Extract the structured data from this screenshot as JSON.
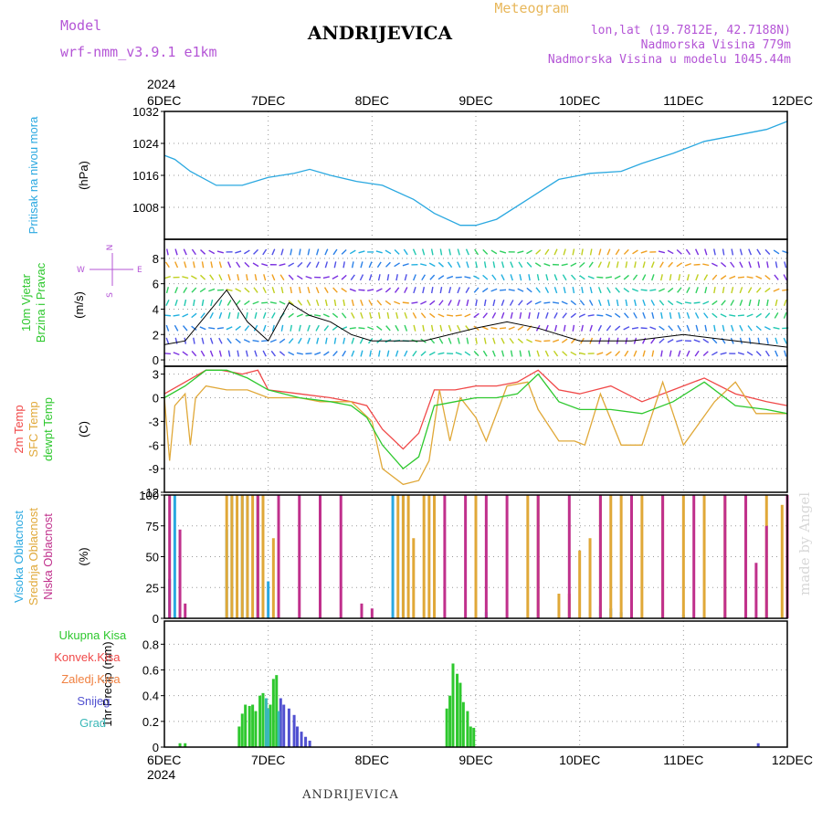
{
  "header": {
    "model_label": "Model",
    "model_name": "wrf-nmm_v3.9.1 e1km",
    "station": "ANDRIJEVICA",
    "meteogram_label": "Meteogram",
    "lonlat": "lon,lat (19.7812E, 42.7188N)",
    "altitude": "Nadmorska Visina 779m",
    "model_altitude": "Nadmorska Visina u modelu 1045.44m"
  },
  "footer": {
    "station": "ANDRIJEVICA",
    "watermark": "made by Angel"
  },
  "colors": {
    "pressure": "#2aa8e0",
    "temp2m": "#f04848",
    "sfc": "#e0a838",
    "dew": "#2ec82e",
    "cloud_high": "#2aa8e0",
    "cloud_mid": "#e0a838",
    "cloud_low": "#c0308c",
    "precip_total": "#2ec82e",
    "precip_conv": "#f04848",
    "precip_frz": "#f08040",
    "precip_snow": "#5050d0",
    "precip_grad": "#3ab8b8",
    "wind_label": "#2ec82e",
    "compass": "#b455d6"
  },
  "chart_data": {
    "type": "meteogram",
    "x": {
      "year": "2024",
      "ticks": [
        "6DEC",
        "7DEC",
        "8DEC",
        "9DEC",
        "10DEC",
        "11DEC",
        "12DEC"
      ],
      "range_days": [
        0,
        6
      ]
    },
    "panels": [
      {
        "id": "pressure",
        "type": "line",
        "ylabel_lines": [
          "Pritisak na nivou mora"
        ],
        "unit": "(hPa)",
        "ylim": [
          1000,
          1032
        ],
        "yticks": [
          1008,
          1016,
          1024,
          1032
        ],
        "series": [
          {
            "key": "pressure",
            "x": [
              0,
              0.1,
              0.25,
              0.5,
              0.75,
              1.0,
              1.25,
              1.4,
              1.6,
              1.85,
              2.1,
              2.4,
              2.6,
              2.85,
              3.0,
              3.2,
              3.5,
              3.8,
              4.1,
              4.4,
              4.6,
              4.9,
              5.2,
              5.5,
              5.8,
              6.0
            ],
            "y": [
              1021,
              1020,
              1017,
              1013.5,
              1013.5,
              1015.5,
              1016.5,
              1017.5,
              1016,
              1014.5,
              1013.5,
              1010,
              1006.5,
              1003.5,
              1003.5,
              1005,
              1010,
              1015,
              1016.5,
              1017,
              1019,
              1021.5,
              1024.5,
              1026,
              1027.5,
              1029.5
            ]
          }
        ]
      },
      {
        "id": "wind",
        "type": "wind",
        "ylabel_lines": [
          "10m Vjetar",
          "Brzina i Pravac"
        ],
        "unit": "(m/s)",
        "ylim": [
          -0.5,
          9.5
        ],
        "yticks": [
          0,
          2,
          4,
          6,
          8
        ],
        "compass": [
          "N",
          "W",
          "E",
          "S"
        ],
        "speed_series": {
          "x": [
            0,
            0.2,
            0.4,
            0.6,
            0.8,
            1.0,
            1.2,
            1.4,
            1.6,
            1.8,
            2.0,
            2.5,
            3.0,
            3.3,
            3.6,
            4.0,
            4.5,
            5.0,
            5.5,
            6.0
          ],
          "y": [
            1.2,
            1.5,
            3.5,
            5.5,
            3.0,
            1.5,
            4.5,
            3.5,
            3.0,
            2.0,
            1.5,
            1.5,
            2.5,
            3.0,
            2.5,
            1.5,
            1.5,
            2.0,
            1.5,
            1.0
          ]
        }
      },
      {
        "id": "temperature",
        "type": "line",
        "ylabel_lines": [
          "2m Temp",
          "SFC Temp",
          "dewpt Temp"
        ],
        "unit": "(C)",
        "ylim": [
          -12,
          4
        ],
        "yticks": [
          -12,
          -9,
          -6,
          -3,
          0,
          3
        ],
        "series": [
          {
            "key": "temp2m",
            "x": [
              0,
              0.2,
              0.4,
              0.55,
              0.75,
              0.9,
              1.0,
              1.3,
              1.6,
              1.8,
              1.95,
              2.1,
              2.3,
              2.45,
              2.6,
              2.8,
              3.0,
              3.2,
              3.4,
              3.6,
              3.8,
              4.0,
              4.3,
              4.6,
              4.9,
              5.2,
              5.5,
              5.8,
              6.0
            ],
            "y": [
              0.5,
              2.0,
              3.5,
              3.5,
              3.0,
              3.5,
              1.0,
              0.5,
              0.0,
              -0.5,
              -1.0,
              -4.0,
              -6.5,
              -4.5,
              1.0,
              1.0,
              1.5,
              1.5,
              2.0,
              3.5,
              1.0,
              0.5,
              1.5,
              -0.5,
              1.0,
              2.5,
              0.5,
              -0.5,
              -1.0
            ]
          },
          {
            "key": "sfc",
            "x": [
              0,
              0.05,
              0.1,
              0.2,
              0.25,
              0.3,
              0.4,
              0.6,
              0.8,
              1.0,
              1.3,
              1.5,
              1.8,
              2.0,
              2.1,
              2.3,
              2.45,
              2.55,
              2.65,
              2.75,
              2.85,
              3.0,
              3.1,
              3.3,
              3.5,
              3.6,
              3.8,
              3.95,
              4.05,
              4.2,
              4.4,
              4.6,
              4.8,
              5.0,
              5.3,
              5.5,
              5.7,
              6.0
            ],
            "y": [
              0.0,
              -8.0,
              -1.0,
              0.5,
              -6.0,
              0.0,
              1.5,
              1.0,
              1.0,
              0.0,
              0.0,
              -0.5,
              -0.5,
              -3.0,
              -9.0,
              -11.0,
              -10.5,
              -8.0,
              1.0,
              -5.5,
              0.0,
              -2.5,
              -5.5,
              1.5,
              2.0,
              -1.5,
              -5.5,
              -5.5,
              -6.0,
              0.5,
              -6.0,
              -6.0,
              2.0,
              -6.0,
              -0.5,
              2.0,
              -2.0,
              -2.0
            ]
          },
          {
            "key": "dew",
            "x": [
              0,
              0.2,
              0.4,
              0.6,
              0.8,
              1.0,
              1.3,
              1.6,
              1.8,
              1.95,
              2.1,
              2.3,
              2.45,
              2.6,
              2.8,
              3.0,
              3.2,
              3.4,
              3.6,
              3.8,
              4.0,
              4.3,
              4.6,
              4.9,
              5.2,
              5.5,
              5.8,
              6.0
            ],
            "y": [
              0.0,
              1.5,
              3.5,
              3.5,
              2.5,
              1.0,
              0.0,
              -0.5,
              -1.0,
              -2.5,
              -6.0,
              -9.0,
              -7.5,
              -1.0,
              -0.5,
              0.0,
              0.0,
              0.5,
              3.0,
              -0.5,
              -1.5,
              -1.5,
              -2.0,
              -0.5,
              2.0,
              -1.0,
              -1.5,
              -2.0
            ]
          }
        ]
      },
      {
        "id": "clouds",
        "type": "bar",
        "ylabel_lines": [
          "Visoka Oblacnost",
          "Srednja Oblacnost",
          "Niska Oblacnost"
        ],
        "unit": "(%)",
        "ylim": [
          0,
          100
        ],
        "yticks": [
          0,
          25,
          50,
          75,
          100
        ],
        "series": [
          {
            "key": "cloud_high",
            "name": "Visoka Oblacnost",
            "x": [
              0.05,
              0.1,
              0.6,
              0.65,
              0.75,
              0.8,
              0.9,
              1.0,
              2.2,
              2.3,
              3.0,
              3.1,
              4.2,
              4.3,
              4.4,
              5.0,
              5.2,
              5.4,
              5.6,
              6.0
            ],
            "values": [
              32,
              100,
              72,
              100,
              100,
              100,
              100,
              30,
              100,
              100,
              15,
              5,
              10,
              8,
              5,
              3,
              2,
              2,
              2,
              2
            ]
          },
          {
            "key": "cloud_mid",
            "name": "Srednja Oblacnost",
            "x": [
              0.6,
              0.65,
              0.7,
              0.75,
              0.8,
              0.85,
              0.9,
              0.95,
              1.05,
              2.25,
              2.3,
              2.35,
              2.4,
              2.5,
              2.55,
              2.6,
              3.0,
              3.5,
              3.6,
              3.8,
              3.9,
              4.0,
              4.1,
              4.2,
              4.3,
              4.4,
              4.6,
              4.8,
              5.0,
              5.2,
              5.4,
              5.6,
              5.8,
              5.95
            ],
            "values": [
              100,
              100,
              100,
              100,
              100,
              100,
              100,
              100,
              65,
              100,
              100,
              100,
              65,
              100,
              100,
              100,
              100,
              100,
              100,
              20,
              20,
              55,
              65,
              100,
              100,
              100,
              100,
              100,
              100,
              100,
              100,
              100,
              100,
              92
            ]
          },
          {
            "key": "cloud_low",
            "name": "Niska Oblacnost",
            "x": [
              0.05,
              0.15,
              0.2,
              0.9,
              1.1,
              1.3,
              1.5,
              1.7,
              1.9,
              2.0,
              2.7,
              2.9,
              3.1,
              3.3,
              3.6,
              3.9,
              4.2,
              4.5,
              4.8,
              5.1,
              5.4,
              5.6,
              5.7,
              5.8,
              6.0
            ],
            "values": [
              100,
              72,
              12,
              100,
              100,
              100,
              100,
              100,
              12,
              8,
              100,
              100,
              100,
              100,
              100,
              100,
              100,
              100,
              100,
              100,
              100,
              100,
              45,
              75,
              100
            ]
          }
        ]
      },
      {
        "id": "precip",
        "type": "bar",
        "ylabel_lines": [
          "1hr Precip (mm)"
        ],
        "legend": [
          "Ukupna Kisa",
          "Konvek.Kisa",
          "Zaledj.Kisa",
          "Snijeg",
          "Grad"
        ],
        "ylim": [
          0,
          0.98
        ],
        "yticks": [
          0,
          0.2,
          0.4,
          0.6,
          0.8
        ],
        "ytick_labels": [
          "0",
          "0.2",
          "0.4",
          "0.6",
          "0.8"
        ],
        "series": [
          {
            "key": "precip_total",
            "name": "Ukupna Kisa",
            "x": [
              0.15,
              0.2,
              0.72,
              0.75,
              0.78,
              0.82,
              0.85,
              0.88,
              0.92,
              0.95,
              1.02,
              1.05,
              1.08,
              2.72,
              2.75,
              2.78,
              2.82,
              2.85,
              2.88,
              2.92,
              2.95,
              2.98
            ],
            "values": [
              0.03,
              0.03,
              0.16,
              0.26,
              0.33,
              0.32,
              0.33,
              0.28,
              0.4,
              0.42,
              0.33,
              0.53,
              0.56,
              0.3,
              0.4,
              0.65,
              0.57,
              0.5,
              0.35,
              0.28,
              0.16,
              0.15
            ]
          },
          {
            "key": "precip_snow",
            "name": "Snijeg",
            "x": [
              1.12,
              1.15,
              1.2,
              1.25,
              1.28,
              1.32,
              1.36,
              1.4,
              5.72
            ],
            "values": [
              0.38,
              0.33,
              0.3,
              0.25,
              0.16,
              0.12,
              0.08,
              0.05,
              0.03
            ]
          },
          {
            "key": "precip_grad",
            "name": "Grad",
            "x": [
              0.98,
              1.0,
              1.1
            ],
            "values": [
              0.38,
              0.3,
              0.28
            ]
          }
        ]
      }
    ]
  }
}
